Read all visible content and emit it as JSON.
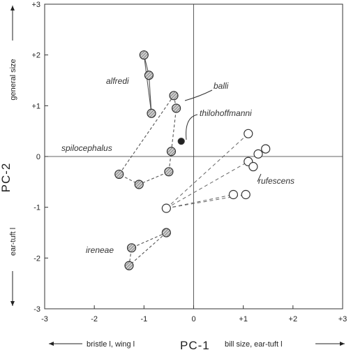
{
  "chart_data": {
    "type": "scatter",
    "xlabel": "PC-1",
    "ylabel": "PC-2",
    "x_note_left": "bristle l, wing l",
    "x_note_right": "bill size, ear-tuft l",
    "y_note_top": "general size",
    "y_note_bottom": "ear-tuft l",
    "xlim": [
      -3,
      3
    ],
    "ylim": [
      -3,
      3
    ],
    "x_ticks": [
      "-3",
      "-2",
      "-1",
      "0",
      "+1",
      "+2",
      "+3"
    ],
    "y_ticks": [
      "+3",
      "+2",
      "+1",
      "0",
      "-1",
      "-2",
      "-3"
    ],
    "legend": "none",
    "grid": false,
    "series": [
      {
        "name": "alfredi",
        "marker": "hatched",
        "points": [
          [
            -1.0,
            2.0
          ],
          [
            -0.9,
            1.6
          ],
          [
            -0.85,
            0.85
          ]
        ],
        "path": [
          0,
          1,
          2,
          0
        ],
        "line": "solid"
      },
      {
        "name": "balli",
        "marker": "hatched",
        "points": [
          [
            -0.4,
            1.2
          ],
          [
            -0.35,
            0.95
          ],
          [
            -0.45,
            0.1
          ],
          [
            -0.5,
            -0.3
          ],
          [
            -1.1,
            -0.55
          ],
          [
            -1.5,
            -0.35
          ]
        ],
        "path": [
          0,
          1,
          2,
          3,
          4,
          5,
          0
        ],
        "line": "dashed"
      },
      {
        "name": "thilohoffmanni",
        "marker": "filled",
        "points": [
          [
            -0.25,
            0.3
          ]
        ],
        "path": [],
        "line": "none"
      },
      {
        "name": "rufescens",
        "marker": "open",
        "points": [
          [
            1.1,
            0.45
          ],
          [
            1.45,
            0.15
          ],
          [
            1.3,
            0.05
          ],
          [
            1.1,
            -0.1
          ],
          [
            1.2,
            -0.2
          ],
          [
            0.8,
            -0.75
          ],
          [
            1.05,
            -0.75
          ],
          [
            -0.55,
            -1.02
          ]
        ],
        "path": [],
        "line": "dashed"
      },
      {
        "name": "ireneae",
        "marker": "hatched",
        "points": [
          [
            -0.55,
            -1.5
          ],
          [
            -1.25,
            -1.8
          ],
          [
            -1.3,
            -2.15
          ]
        ],
        "path": [
          0,
          1,
          2,
          0
        ],
        "line": "dashed"
      }
    ],
    "annotations": [
      "alfredi",
      "balli",
      "thilohoffmanni",
      "spilocephalus",
      "rufescens",
      "ireneae"
    ]
  }
}
